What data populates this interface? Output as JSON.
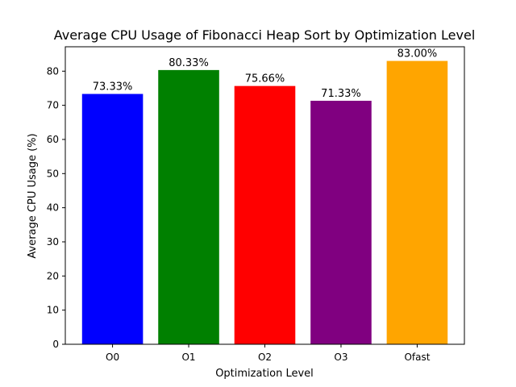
{
  "chart_data": {
    "type": "bar",
    "title": "Average CPU Usage of Fibonacci Heap Sort by Optimization Level",
    "xlabel": "Optimization Level",
    "ylabel": "Average CPU Usage (%)",
    "categories": [
      "O0",
      "O1",
      "O2",
      "O3",
      "Ofast"
    ],
    "values": [
      73.33,
      80.33,
      75.66,
      71.33,
      83.0
    ],
    "data_labels": [
      "73.33%",
      "80.33%",
      "75.66%",
      "71.33%",
      "83.00%"
    ],
    "colors": [
      "#0000ff",
      "#008000",
      "#ff0000",
      "#800080",
      "#ffa500"
    ],
    "ylim": [
      0,
      87.15
    ],
    "yticks": [
      0,
      10,
      20,
      30,
      40,
      50,
      60,
      70,
      80
    ],
    "grid": false,
    "legend": "none"
  }
}
